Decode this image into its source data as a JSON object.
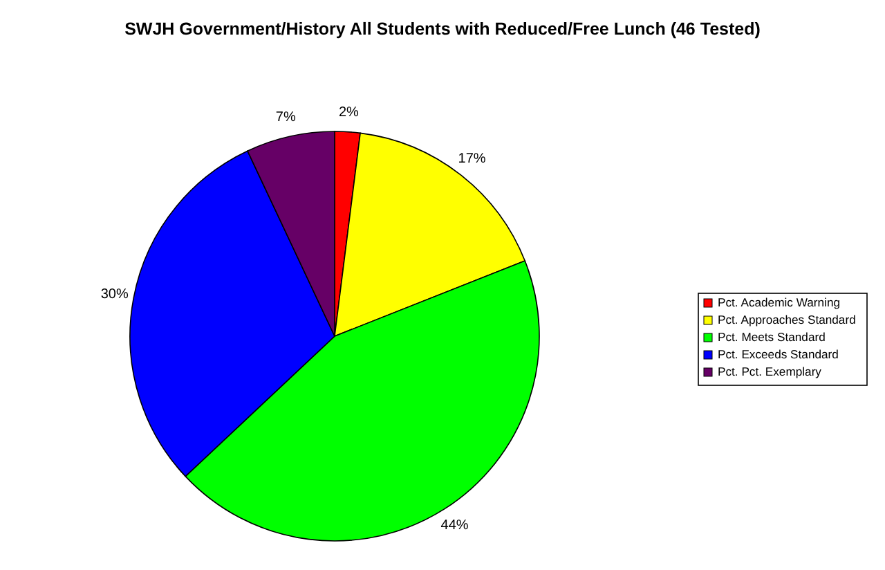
{
  "chart_data": {
    "type": "pie",
    "title": "SWJH Government/History All Students with Reduced/Free Lunch (46 Tested)",
    "categories": [
      "Pct. Academic Warning",
      "Pct. Approaches Standard",
      "Pct. Meets Standard",
      "Pct. Exceeds Standard",
      "Pct. Pct. Exemplary"
    ],
    "values": [
      2,
      17,
      44,
      30,
      7
    ],
    "colors": [
      "#ff0000",
      "#ffff00",
      "#00ff00",
      "#0000ff",
      "#660066"
    ],
    "value_labels": [
      "2%",
      "17%",
      "44%",
      "30%",
      "7%"
    ],
    "legend": "right"
  }
}
